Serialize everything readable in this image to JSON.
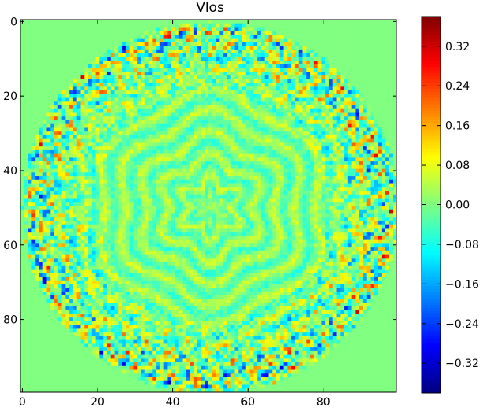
{
  "chart_data": {
    "type": "heatmap",
    "title": "Vlos",
    "xlabel": "",
    "ylabel": "",
    "image_size": [
      100,
      100
    ],
    "x_ticks": [
      0,
      20,
      40,
      60,
      80
    ],
    "y_ticks": [
      0,
      20,
      40,
      60,
      80
    ],
    "xlim": [
      0,
      99
    ],
    "ylim": [
      99,
      0
    ],
    "colorscale": "jet",
    "value_range": [
      -0.38,
      0.38
    ],
    "colorbar_ticks": [
      0.32,
      0.24,
      0.16,
      0.08,
      0.0,
      -0.08,
      -0.16,
      -0.24,
      -0.32
    ],
    "colorbar_tick_labels": [
      "0.32",
      "0.24",
      "0.16",
      "0.08",
      "0.00",
      "−0.08",
      "−0.16",
      "−0.24",
      "−0.32"
    ],
    "field": {
      "center": [
        50,
        50
      ],
      "disk_radius": 50,
      "outside_value": 0.0,
      "inner_rms": 0.05,
      "outer_rms": 0.28,
      "transition_radius": 28
    }
  }
}
